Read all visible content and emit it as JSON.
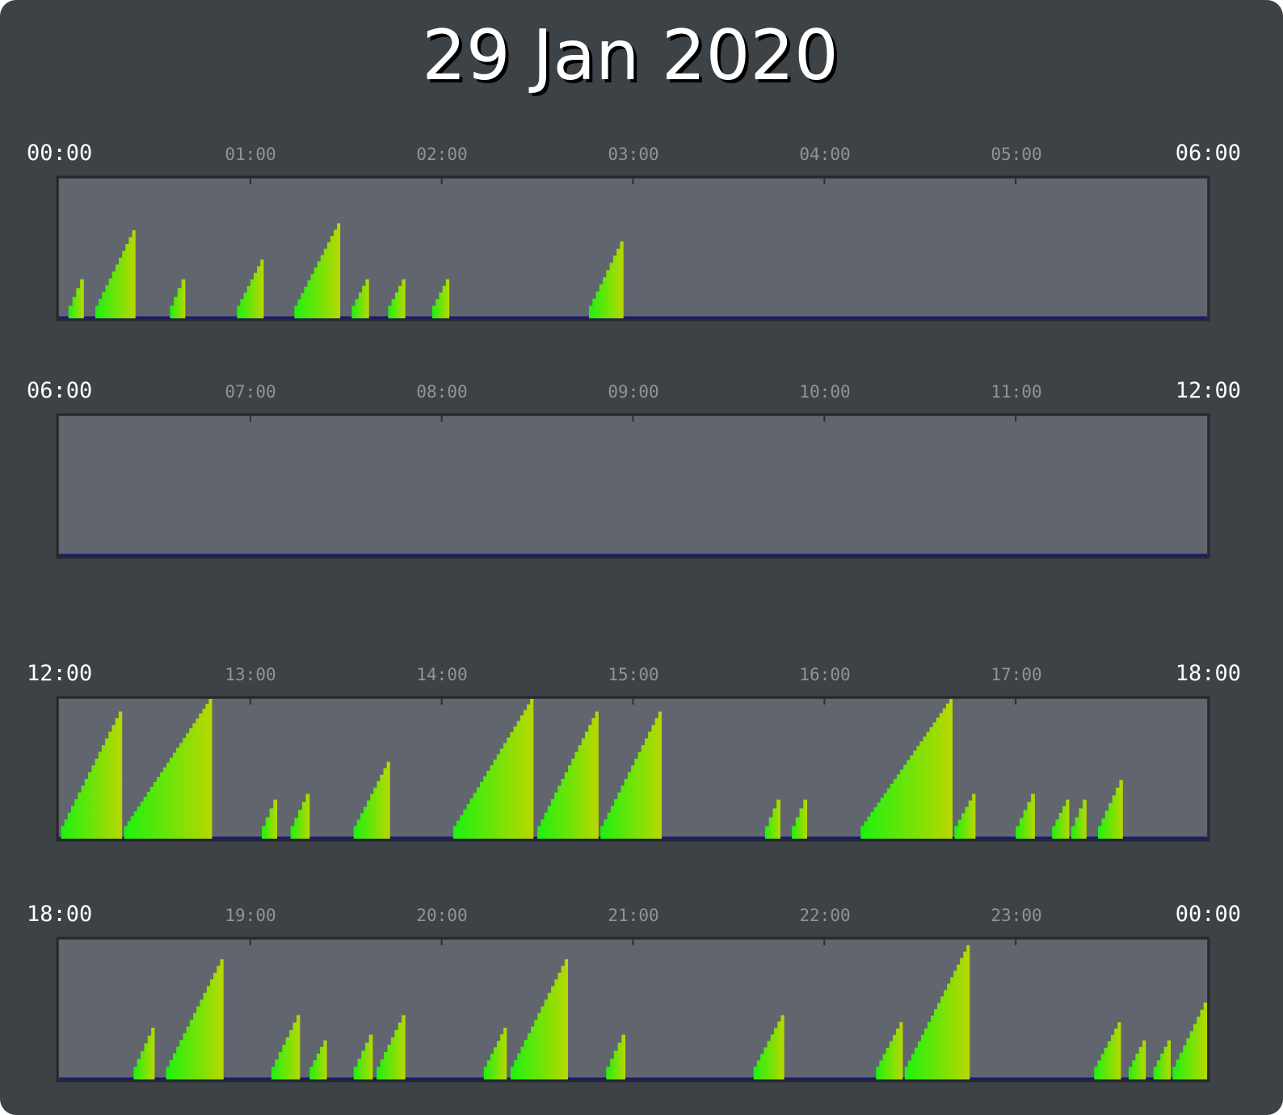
{
  "title": "29 Jan 2020",
  "colors": {
    "background": "#3d4246",
    "plot_bg": "#61666e",
    "baseline": "#1a1a6e",
    "low": "#1ef10f",
    "high": "#b8d800"
  },
  "chart_data": [
    {
      "type": "area",
      "start_label": "00:00",
      "end_label": "06:00",
      "tick_labels": [
        "01:00",
        "02:00",
        "03:00",
        "04:00",
        "05:00"
      ],
      "x_units": "hours",
      "xlim": [
        0,
        6
      ],
      "ylim": [
        0,
        1
      ],
      "grid": false,
      "ramps": [
        {
          "start": 0.05,
          "end": 0.13,
          "peak": 0.28
        },
        {
          "start": 0.19,
          "end": 0.4,
          "peak": 0.63
        },
        {
          "start": 0.58,
          "end": 0.66,
          "peak": 0.28
        },
        {
          "start": 0.93,
          "end": 1.07,
          "peak": 0.42
        },
        {
          "start": 1.23,
          "end": 1.47,
          "peak": 0.68
        },
        {
          "start": 1.53,
          "end": 1.62,
          "peak": 0.28
        },
        {
          "start": 1.72,
          "end": 1.81,
          "peak": 0.28
        },
        {
          "start": 1.95,
          "end": 2.04,
          "peak": 0.28
        },
        {
          "start": 2.77,
          "end": 2.95,
          "peak": 0.55
        }
      ]
    },
    {
      "type": "area",
      "start_label": "06:00",
      "end_label": "12:00",
      "tick_labels": [
        "07:00",
        "08:00",
        "09:00",
        "10:00",
        "11:00"
      ],
      "x_units": "hours",
      "xlim": [
        6,
        12
      ],
      "ylim": [
        0,
        1
      ],
      "grid": false,
      "ramps": []
    },
    {
      "type": "area",
      "start_label": "12:00",
      "end_label": "18:00",
      "tick_labels": [
        "13:00",
        "14:00",
        "15:00",
        "16:00",
        "17:00"
      ],
      "x_units": "hours",
      "xlim": [
        12,
        18
      ],
      "ylim": [
        0,
        1
      ],
      "grid": false,
      "ramps": [
        {
          "start": 12.01,
          "end": 12.33,
          "peak": 0.91
        },
        {
          "start": 12.34,
          "end": 12.8,
          "peak": 1.0
        },
        {
          "start": 13.06,
          "end": 13.14,
          "peak": 0.28
        },
        {
          "start": 13.21,
          "end": 13.31,
          "peak": 0.32
        },
        {
          "start": 13.54,
          "end": 13.73,
          "peak": 0.55
        },
        {
          "start": 14.06,
          "end": 14.48,
          "peak": 1.0
        },
        {
          "start": 14.5,
          "end": 14.82,
          "peak": 0.91
        },
        {
          "start": 14.83,
          "end": 15.15,
          "peak": 0.91
        },
        {
          "start": 15.69,
          "end": 15.77,
          "peak": 0.28
        },
        {
          "start": 15.83,
          "end": 15.91,
          "peak": 0.28
        },
        {
          "start": 16.19,
          "end": 16.67,
          "peak": 1.0
        },
        {
          "start": 16.68,
          "end": 16.79,
          "peak": 0.32
        },
        {
          "start": 17.0,
          "end": 17.1,
          "peak": 0.32
        },
        {
          "start": 17.19,
          "end": 17.28,
          "peak": 0.28
        },
        {
          "start": 17.29,
          "end": 17.37,
          "peak": 0.28
        },
        {
          "start": 17.43,
          "end": 17.56,
          "peak": 0.42
        }
      ]
    },
    {
      "type": "area",
      "start_label": "18:00",
      "end_label": "00:00",
      "tick_labels": [
        "19:00",
        "20:00",
        "21:00",
        "22:00",
        "23:00"
      ],
      "x_units": "hours",
      "xlim": [
        18,
        24
      ],
      "ylim": [
        0,
        1
      ],
      "grid": false,
      "ramps": [
        {
          "start": 18.39,
          "end": 18.5,
          "peak": 0.37
        },
        {
          "start": 18.56,
          "end": 18.86,
          "peak": 0.86
        },
        {
          "start": 19.11,
          "end": 19.26,
          "peak": 0.46
        },
        {
          "start": 19.31,
          "end": 19.4,
          "peak": 0.28
        },
        {
          "start": 19.54,
          "end": 19.64,
          "peak": 0.32
        },
        {
          "start": 19.66,
          "end": 19.81,
          "peak": 0.46
        },
        {
          "start": 20.22,
          "end": 20.34,
          "peak": 0.37
        },
        {
          "start": 20.36,
          "end": 20.66,
          "peak": 0.86
        },
        {
          "start": 20.86,
          "end": 20.96,
          "peak": 0.32
        },
        {
          "start": 21.63,
          "end": 21.79,
          "peak": 0.46
        },
        {
          "start": 22.27,
          "end": 22.41,
          "peak": 0.41
        },
        {
          "start": 22.42,
          "end": 22.76,
          "peak": 0.96
        },
        {
          "start": 23.41,
          "end": 23.55,
          "peak": 0.41
        },
        {
          "start": 23.59,
          "end": 23.68,
          "peak": 0.28
        },
        {
          "start": 23.72,
          "end": 23.81,
          "peak": 0.28
        },
        {
          "start": 23.82,
          "end": 24.0,
          "peak": 0.55
        }
      ]
    }
  ]
}
